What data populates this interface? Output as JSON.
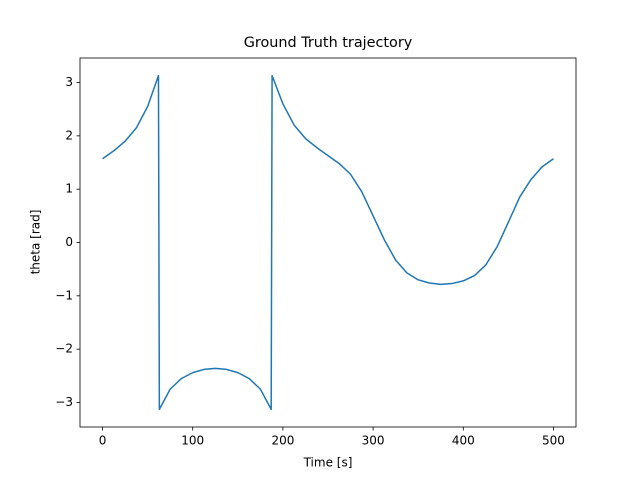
{
  "chart_data": {
    "type": "line",
    "title": "Ground Truth trajectory",
    "x_label": "Time [s]",
    "y_label": "theta [rad]",
    "x": [
      0,
      12.5,
      25,
      37.5,
      50,
      62,
      63,
      75,
      87.5,
      100,
      112.5,
      125,
      137.5,
      150,
      162.5,
      175,
      187,
      188,
      200,
      212.5,
      225,
      237.5,
      250,
      262.5,
      275,
      287.5,
      300,
      312.5,
      325,
      337.5,
      350,
      362.5,
      375,
      387.5,
      400,
      412.5,
      425,
      437.5,
      450,
      462.5,
      475,
      487.5,
      500
    ],
    "values": [
      1.57,
      1.72,
      1.9,
      2.15,
      2.55,
      3.13,
      -3.13,
      -2.75,
      -2.55,
      -2.44,
      -2.38,
      -2.36,
      -2.38,
      -2.44,
      -2.55,
      -2.75,
      -3.13,
      3.13,
      2.6,
      2.2,
      1.95,
      1.78,
      1.63,
      1.48,
      1.28,
      0.95,
      0.5,
      0.05,
      -0.33,
      -0.57,
      -0.7,
      -0.76,
      -0.785,
      -0.77,
      -0.72,
      -0.62,
      -0.42,
      -0.08,
      0.38,
      0.85,
      1.18,
      1.42,
      1.57
    ],
    "color": "#1f77b4",
    "xlim": [
      -25,
      525
    ],
    "xticks": [
      0,
      100,
      200,
      300,
      400,
      500
    ],
    "ylim": [
      -3.46,
      3.46
    ],
    "yticks": [
      {
        "value": -3,
        "label": "−3"
      },
      {
        "value": -2,
        "label": "−2"
      },
      {
        "value": -1,
        "label": "−1"
      },
      0,
      1,
      2,
      3
    ]
  }
}
